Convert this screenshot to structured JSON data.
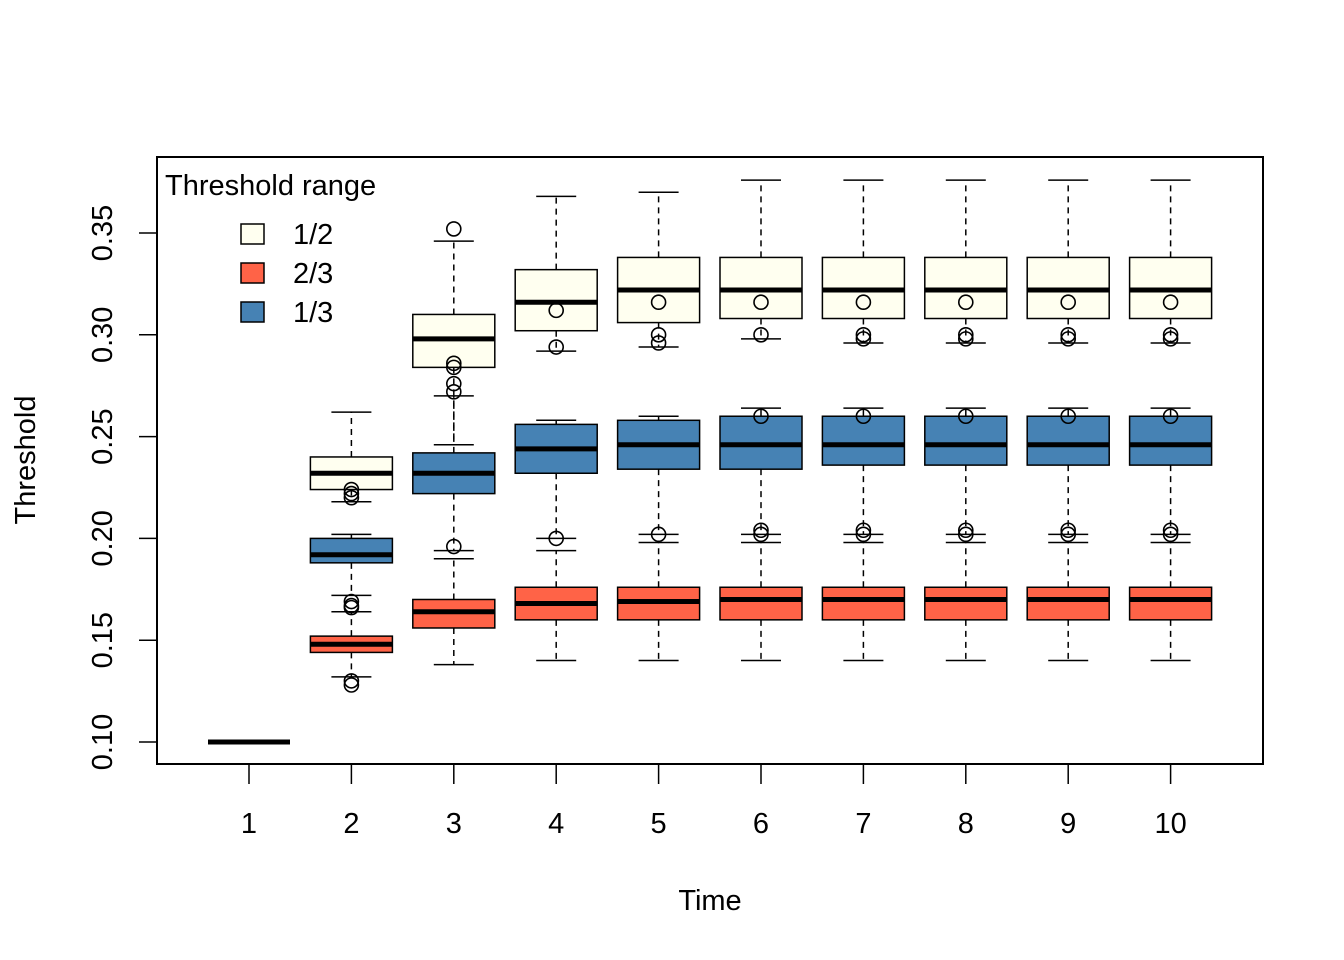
{
  "chart_data": {
    "type": "boxplot",
    "xlabel": "Time",
    "ylabel": "Threshold",
    "categories": [
      "1",
      "2",
      "3",
      "4",
      "5",
      "6",
      "7",
      "8",
      "9",
      "10"
    ],
    "ylim": [
      0.085,
      0.385
    ],
    "yticks": [
      {
        "value": 0.1,
        "label": "0.10"
      },
      {
        "value": 0.15,
        "label": "0.15"
      },
      {
        "value": 0.2,
        "label": "0.20"
      },
      {
        "value": 0.25,
        "label": "0.25"
      },
      {
        "value": 0.3,
        "label": "0.30"
      },
      {
        "value": 0.35,
        "label": "0.35"
      }
    ],
    "legend": {
      "title": "Threshold range",
      "placement": "top-left"
    },
    "series": [
      {
        "name": "1/2",
        "color": "#FFFFF0",
        "boxes": [
          {
            "min": 0.1,
            "q1": 0.1,
            "median": 0.1,
            "q3": 0.1,
            "max": 0.1,
            "outliers": []
          },
          {
            "min": 0.218,
            "q1": 0.224,
            "median": 0.232,
            "q3": 0.24,
            "max": 0.262,
            "outliers": [
              0.224,
              0.222,
              0.22
            ]
          },
          {
            "min": 0.246,
            "q1": 0.284,
            "median": 0.298,
            "q3": 0.31,
            "max": 0.346,
            "outliers": [
              0.352,
              0.286,
              0.284,
              0.276,
              0.272
            ]
          },
          {
            "min": 0.292,
            "q1": 0.302,
            "median": 0.316,
            "q3": 0.332,
            "max": 0.368,
            "outliers": [
              0.312,
              0.294
            ]
          },
          {
            "min": 0.294,
            "q1": 0.306,
            "median": 0.322,
            "q3": 0.338,
            "max": 0.37,
            "outliers": [
              0.316,
              0.3,
              0.296
            ]
          },
          {
            "min": 0.298,
            "q1": 0.308,
            "median": 0.322,
            "q3": 0.338,
            "max": 0.376,
            "outliers": [
              0.316,
              0.3
            ]
          },
          {
            "min": 0.296,
            "q1": 0.308,
            "median": 0.322,
            "q3": 0.338,
            "max": 0.376,
            "outliers": [
              0.316,
              0.3,
              0.298
            ]
          },
          {
            "min": 0.296,
            "q1": 0.308,
            "median": 0.322,
            "q3": 0.338,
            "max": 0.376,
            "outliers": [
              0.316,
              0.3,
              0.298
            ]
          },
          {
            "min": 0.296,
            "q1": 0.308,
            "median": 0.322,
            "q3": 0.338,
            "max": 0.376,
            "outliers": [
              0.316,
              0.3,
              0.298
            ]
          },
          {
            "min": 0.296,
            "q1": 0.308,
            "median": 0.322,
            "q3": 0.338,
            "max": 0.376,
            "outliers": [
              0.316,
              0.3,
              0.298
            ]
          }
        ]
      },
      {
        "name": "2/3",
        "color": "#FF6347",
        "boxes": [
          {
            "min": 0.1,
            "q1": 0.1,
            "median": 0.1,
            "q3": 0.1,
            "max": 0.1,
            "outliers": []
          },
          {
            "min": 0.132,
            "q1": 0.144,
            "median": 0.148,
            "q3": 0.152,
            "max": 0.164,
            "outliers": [
              0.13,
              0.128
            ]
          },
          {
            "min": 0.138,
            "q1": 0.156,
            "median": 0.164,
            "q3": 0.17,
            "max": 0.19,
            "outliers": []
          },
          {
            "min": 0.14,
            "q1": 0.16,
            "median": 0.168,
            "q3": 0.176,
            "max": 0.194,
            "outliers": []
          },
          {
            "min": 0.14,
            "q1": 0.16,
            "median": 0.169,
            "q3": 0.176,
            "max": 0.198,
            "outliers": []
          },
          {
            "min": 0.14,
            "q1": 0.16,
            "median": 0.17,
            "q3": 0.176,
            "max": 0.198,
            "outliers": []
          },
          {
            "min": 0.14,
            "q1": 0.16,
            "median": 0.17,
            "q3": 0.176,
            "max": 0.198,
            "outliers": []
          },
          {
            "min": 0.14,
            "q1": 0.16,
            "median": 0.17,
            "q3": 0.176,
            "max": 0.198,
            "outliers": []
          },
          {
            "min": 0.14,
            "q1": 0.16,
            "median": 0.17,
            "q3": 0.176,
            "max": 0.198,
            "outliers": []
          },
          {
            "min": 0.14,
            "q1": 0.16,
            "median": 0.17,
            "q3": 0.176,
            "max": 0.198,
            "outliers": []
          }
        ]
      },
      {
        "name": "1/3",
        "color": "#4682B4",
        "boxes": [
          {
            "min": 0.1,
            "q1": 0.1,
            "median": 0.1,
            "q3": 0.1,
            "max": 0.1,
            "outliers": []
          },
          {
            "min": 0.172,
            "q1": 0.188,
            "median": 0.192,
            "q3": 0.2,
            "max": 0.202,
            "outliers": [
              0.169,
              0.167,
              0.166
            ]
          },
          {
            "min": 0.194,
            "q1": 0.222,
            "median": 0.232,
            "q3": 0.242,
            "max": 0.27,
            "outliers": [
              0.196
            ]
          },
          {
            "min": 0.2,
            "q1": 0.232,
            "median": 0.244,
            "q3": 0.256,
            "max": 0.258,
            "outliers": [
              0.2
            ]
          },
          {
            "min": 0.202,
            "q1": 0.234,
            "median": 0.246,
            "q3": 0.258,
            "max": 0.26,
            "outliers": [
              0.202
            ]
          },
          {
            "min": 0.202,
            "q1": 0.234,
            "median": 0.246,
            "q3": 0.26,
            "max": 0.264,
            "outliers": [
              0.26,
              0.204,
              0.202
            ]
          },
          {
            "min": 0.202,
            "q1": 0.236,
            "median": 0.246,
            "q3": 0.26,
            "max": 0.264,
            "outliers": [
              0.26,
              0.204,
              0.202
            ]
          },
          {
            "min": 0.202,
            "q1": 0.236,
            "median": 0.246,
            "q3": 0.26,
            "max": 0.264,
            "outliers": [
              0.26,
              0.204,
              0.202
            ]
          },
          {
            "min": 0.202,
            "q1": 0.236,
            "median": 0.246,
            "q3": 0.26,
            "max": 0.264,
            "outliers": [
              0.26,
              0.204,
              0.202
            ]
          },
          {
            "min": 0.202,
            "q1": 0.236,
            "median": 0.246,
            "q3": 0.26,
            "max": 0.264,
            "outliers": [
              0.26,
              0.204,
              0.202
            ]
          }
        ]
      }
    ]
  }
}
